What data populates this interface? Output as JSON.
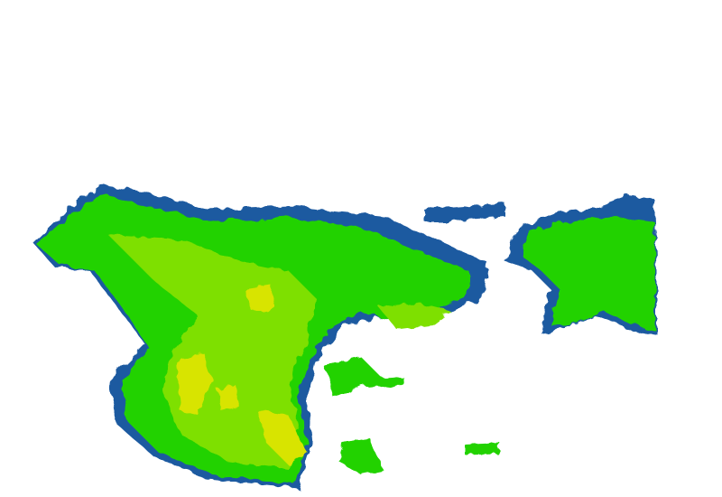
{
  "radar": {
    "colors": {
      "background": "#ffffff",
      "weak": "#1e5aa0",
      "light": "#10a878",
      "moderate": "#22d200",
      "moderate_high": "#7ee000",
      "high": "#d8e400",
      "very_high": "#f0c000"
    }
  }
}
